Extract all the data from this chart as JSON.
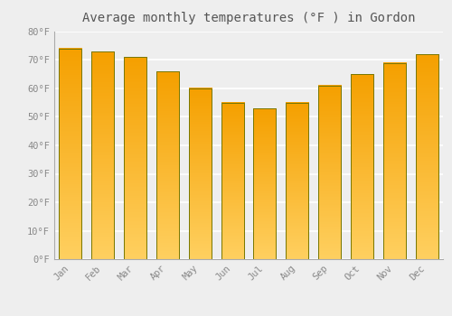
{
  "title": "Average monthly temperatures (°F ) in Gordon",
  "months": [
    "Jan",
    "Feb",
    "Mar",
    "Apr",
    "May",
    "Jun",
    "Jul",
    "Aug",
    "Sep",
    "Oct",
    "Nov",
    "Dec"
  ],
  "values": [
    74,
    73,
    71,
    66,
    60,
    55,
    53,
    55,
    61,
    65,
    69,
    72
  ],
  "bar_color_top": "#F5A000",
  "bar_color_bottom": "#FFD060",
  "bar_edge_color": "#888800",
  "ylim": [
    0,
    80
  ],
  "yticks": [
    0,
    10,
    20,
    30,
    40,
    50,
    60,
    70,
    80
  ],
  "ytick_labels": [
    "0°F",
    "10°F",
    "20°F",
    "30°F",
    "40°F",
    "50°F",
    "60°F",
    "70°F",
    "80°F"
  ],
  "background_color": "#eeeeee",
  "grid_color": "#ffffff",
  "title_fontsize": 10,
  "tick_fontsize": 7.5,
  "tick_font_color": "#888888",
  "title_font_color": "#555555"
}
